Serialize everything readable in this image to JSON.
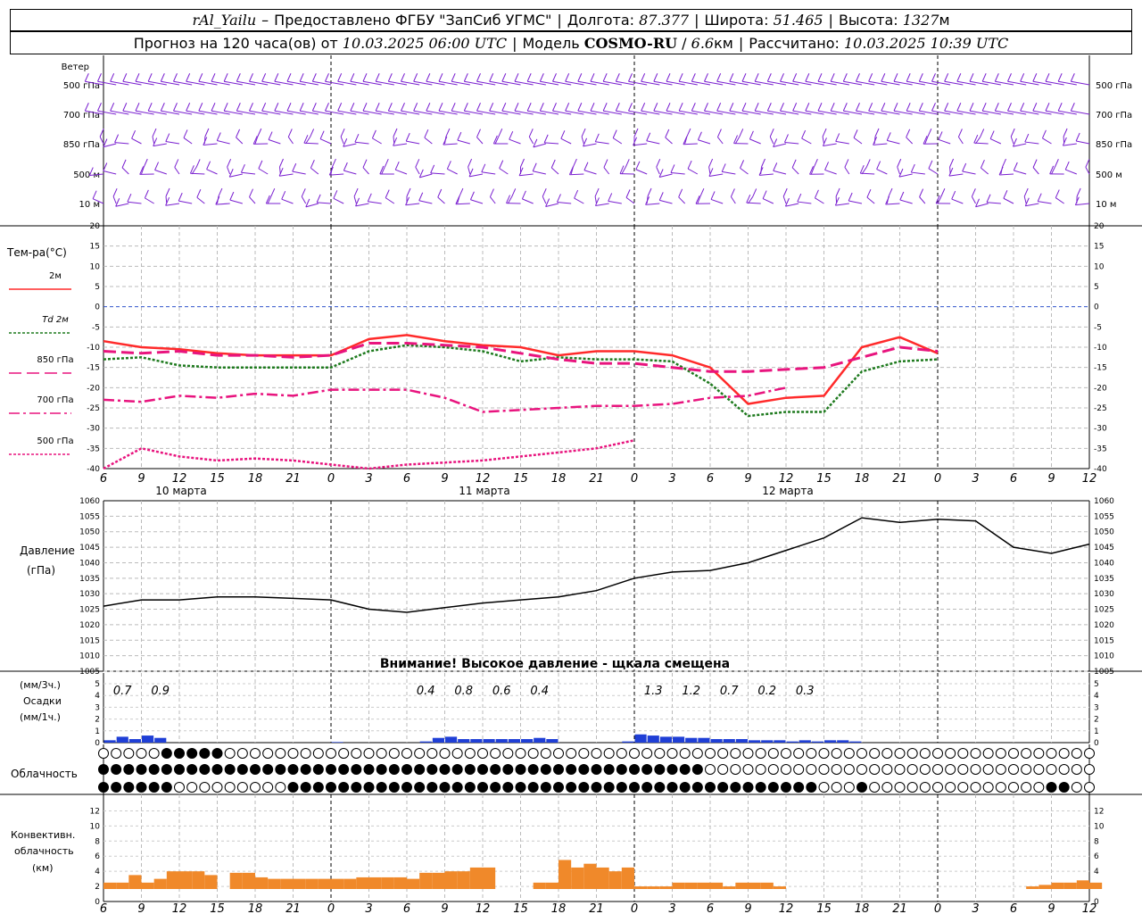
{
  "header": {
    "station": "rAl_Yailu",
    "provided_by": "Предоставлено ФГБУ \"ЗапСиб УГМС\"",
    "lon_label": "Долгота:",
    "lon_value": "87.377",
    "lat_label": "Широта:",
    "lat_value": "51.465",
    "alt_label": "Высота:",
    "alt_value": "1327",
    "alt_unit": "м",
    "forecast_prefix": "Прогноз на 120 часа(ов) от",
    "forecast_time": "10.03.2025 06:00 UTC",
    "model_label": "Модель",
    "model_name": "COSMO-RU",
    "model_res": "6.6",
    "model_res_unit": "км",
    "computed_label": "Рассчитано:",
    "computed_time": "10.03.2025 10:39 UTC"
  },
  "wind_panel": {
    "title": "Ветер",
    "levels": [
      "500 гПа",
      "700 гПа",
      "850 гПа",
      "500 м",
      "10  м"
    ]
  },
  "temp_panel": {
    "title": "Тем-ра(°C)",
    "legend": [
      {
        "label": "2м",
        "color": "#ff2a2a",
        "dash": ""
      },
      {
        "label": "Td  2м",
        "color": "#1e7a1e",
        "dash": "3,2"
      },
      {
        "label": "850 гПа",
        "color": "#e8147e",
        "dash": "14,6"
      },
      {
        "label": "700 гПа",
        "color": "#e8147e",
        "dash": "12,4,3,4"
      },
      {
        "label": "500 гПа",
        "color": "#e8147e",
        "dash": "3,2"
      }
    ],
    "yticks": [
      20,
      15,
      10,
      5,
      0,
      -5,
      -10,
      -15,
      -20,
      -25,
      -30,
      -35,
      -40
    ]
  },
  "time_axis": {
    "hour_labels": [
      "6",
      "9",
      "12",
      "15",
      "18",
      "21",
      "0",
      "3",
      "6",
      "9",
      "12",
      "15",
      "18",
      "21",
      "0",
      "3",
      "6",
      "9",
      "12",
      "15",
      "18",
      "21",
      "0",
      "3",
      "6",
      "9",
      "12"
    ],
    "dates": [
      "10 марта",
      "11 марта",
      "12 марта"
    ]
  },
  "pressure_panel": {
    "title1": "Давление",
    "title2": "(гПа)",
    "yticks": [
      1060,
      1055,
      1050,
      1045,
      1040,
      1035,
      1030,
      1025,
      1020,
      1015,
      1010,
      1005
    ],
    "warning": "Внимание! Высокое давление - щкала смещена"
  },
  "precip_panel": {
    "title1": "(мм/3ч.)",
    "title2": "Осадки",
    "title3": "(мм/1ч.)",
    "yticks": [
      5,
      4,
      3,
      2,
      1,
      0
    ],
    "labels": [
      "0.7",
      "0.9",
      "0.4",
      "0.8",
      "0.6",
      "0.4",
      "1.3",
      "1.2",
      "0.7",
      "0.2",
      "0.3"
    ]
  },
  "cloud_panel": {
    "title": "Облачность"
  },
  "conv_panel": {
    "title1": "Конвективн.",
    "title2": "облачность",
    "title3": "(км)",
    "yticks": [
      12,
      10,
      8,
      6,
      4,
      2,
      0
    ]
  },
  "chart_data": [
    {
      "type": "line",
      "title": "Тем-ра(°C)",
      "x_hours": [
        0,
        3,
        6,
        9,
        12,
        15,
        18,
        21,
        24,
        27,
        30,
        33,
        36,
        39,
        42,
        45,
        48,
        51,
        54,
        57,
        60,
        63,
        66,
        69,
        72,
        75,
        78
      ],
      "ylim": [
        -40,
        20
      ],
      "series": [
        {
          "name": "2м",
          "values": [
            -8.5,
            -10,
            -10.5,
            -11.5,
            -12,
            -12,
            -12,
            -8,
            -7,
            -8.5,
            -9.5,
            -10,
            -12,
            -11,
            -11,
            -12,
            -15,
            -24,
            -22.5,
            -22,
            -10,
            -7.5,
            -11.5,
            null,
            null,
            null,
            null
          ]
        },
        {
          "name": "Td  2м",
          "values": [
            -13,
            -12.5,
            -14.5,
            -15,
            -15,
            -15,
            -15,
            -11,
            -9.5,
            -10,
            -11,
            -13.5,
            -12.5,
            -13,
            -13,
            -13.5,
            -19,
            -27,
            -26,
            -26,
            -16,
            -13.5,
            -13,
            null,
            null,
            null,
            null
          ]
        },
        {
          "name": "850 гПа",
          "values": [
            -11,
            -11.5,
            -11,
            -12,
            -12,
            -12.5,
            -12,
            -9,
            -9,
            -9.5,
            -10,
            -11.5,
            -13,
            -14,
            -14,
            -15,
            -16,
            -16,
            -15.5,
            -15,
            -12.5,
            -10,
            -11,
            null,
            null,
            null,
            null
          ]
        },
        {
          "name": "700 гПа",
          "values": [
            -23,
            -23.5,
            -22,
            -22.5,
            -21.5,
            -22,
            -20.5,
            -20.5,
            -20.5,
            -22.5,
            -26,
            -25.5,
            -25,
            -24.5,
            -24.5,
            -24,
            -22.5,
            -22,
            -20,
            null,
            null,
            null,
            null,
            null,
            null,
            null,
            null
          ]
        },
        {
          "name": "500 гПа",
          "values": [
            -40,
            -35,
            -37,
            -38,
            -37.5,
            -38,
            -39,
            -40,
            -39,
            -38.5,
            -38,
            -37,
            -36,
            -35,
            -33,
            null,
            null,
            null,
            null,
            null,
            null,
            null,
            null,
            null,
            null,
            null,
            null
          ]
        }
      ]
    },
    {
      "type": "line",
      "title": "Давление",
      "ylabel": "(гПа)",
      "ylim": [
        1005,
        1060
      ],
      "x_hours": [
        0,
        3,
        6,
        9,
        12,
        15,
        18,
        21,
        24,
        27,
        30,
        33,
        36,
        39,
        42,
        45,
        48,
        51,
        54,
        57,
        60,
        63,
        66,
        69,
        72,
        75,
        78
      ],
      "series": [
        {
          "name": "",
          "values": [
            1026,
            1028,
            1028,
            1029,
            1029,
            1028.5,
            1028,
            1025,
            1024,
            1025.5,
            1027,
            1028,
            1029,
            1031,
            1035,
            1037,
            1037.5,
            1040,
            1044,
            1048,
            1054.5,
            1053,
            1054,
            1053.5,
            1045,
            1043,
            1046
          ]
        }
      ]
    },
    {
      "type": "bar",
      "title": "Осадки",
      "ylim": [
        0,
        5
      ],
      "x_hours": [
        0,
        1,
        2,
        3,
        4,
        5,
        6,
        7,
        8,
        9,
        10,
        11,
        12,
        13,
        14,
        15,
        16,
        17,
        18,
        19,
        20,
        21,
        22,
        23,
        24,
        25,
        26,
        27,
        28,
        29,
        30,
        31,
        32,
        33,
        34,
        35,
        36,
        37,
        38,
        39,
        40,
        41,
        42,
        43,
        44,
        45,
        46,
        47,
        48,
        49,
        50,
        51,
        52,
        53,
        54,
        55,
        56,
        57,
        58,
        59,
        60,
        61,
        62,
        63,
        64,
        65,
        66,
        67,
        68,
        69,
        70,
        71,
        72,
        73,
        74,
        75,
        76,
        77,
        78
      ],
      "values": [
        0.2,
        0.5,
        0.3,
        0.6,
        0.4,
        0,
        0,
        0,
        0,
        0,
        0,
        0,
        0,
        0,
        0,
        0,
        0,
        0,
        0.05,
        0,
        0,
        0,
        0,
        0,
        0,
        0.1,
        0.4,
        0.5,
        0.3,
        0.3,
        0.3,
        0.3,
        0.3,
        0.3,
        0.4,
        0.3,
        0,
        0,
        0,
        0,
        0,
        0.1,
        0.7,
        0.6,
        0.5,
        0.5,
        0.4,
        0.4,
        0.3,
        0.3,
        0.3,
        0.2,
        0.2,
        0.2,
        0.1,
        0.2,
        0.1,
        0.2,
        0.2,
        0.1,
        0,
        0,
        0,
        0,
        0,
        0,
        0,
        0,
        0,
        0,
        0,
        0,
        0,
        0,
        0,
        0,
        0,
        0,
        0
      ]
    },
    {
      "type": "bar",
      "title": "Конвективн. облачность",
      "ylabel": "(км)",
      "ylim": [
        0,
        13
      ],
      "x_hours": [
        0,
        1,
        2,
        3,
        4,
        5,
        6,
        7,
        8,
        9,
        10,
        11,
        12,
        13,
        14,
        15,
        16,
        17,
        18,
        19,
        20,
        21,
        22,
        23,
        24,
        25,
        26,
        27,
        28,
        29,
        30,
        31,
        32,
        33,
        34,
        35,
        36,
        37,
        38,
        39,
        40,
        41,
        42,
        43,
        44,
        45,
        46,
        47,
        48,
        49,
        50,
        51,
        52,
        53,
        54,
        55,
        56,
        57,
        58,
        59,
        60,
        61,
        62,
        63,
        64,
        65,
        66,
        67,
        68,
        69,
        70,
        71,
        72,
        73,
        74,
        75,
        76,
        77,
        78
      ],
      "values": [
        2.5,
        2.5,
        3.5,
        2.5,
        3,
        4,
        4,
        4,
        3.5,
        0,
        3.8,
        3.8,
        3.2,
        3,
        3,
        3,
        3,
        3,
        3,
        3,
        3.2,
        3.2,
        3.2,
        3.2,
        3,
        3.8,
        3.8,
        4,
        4,
        4.5,
        4.5,
        0.2,
        0,
        0,
        2.5,
        2.5,
        5.5,
        4.5,
        5,
        4.5,
        4,
        4.5,
        2,
        2,
        2,
        2.5,
        2.5,
        2.5,
        2.5,
        2,
        2.5,
        2.5,
        2.5,
        2,
        1,
        0.5,
        0,
        0,
        0,
        0,
        0,
        0,
        0,
        0,
        0,
        0,
        0,
        0,
        0,
        0,
        0,
        0,
        0,
        2,
        2.2,
        2.5,
        2.5,
        2.8,
        2.5
      ]
    }
  ]
}
